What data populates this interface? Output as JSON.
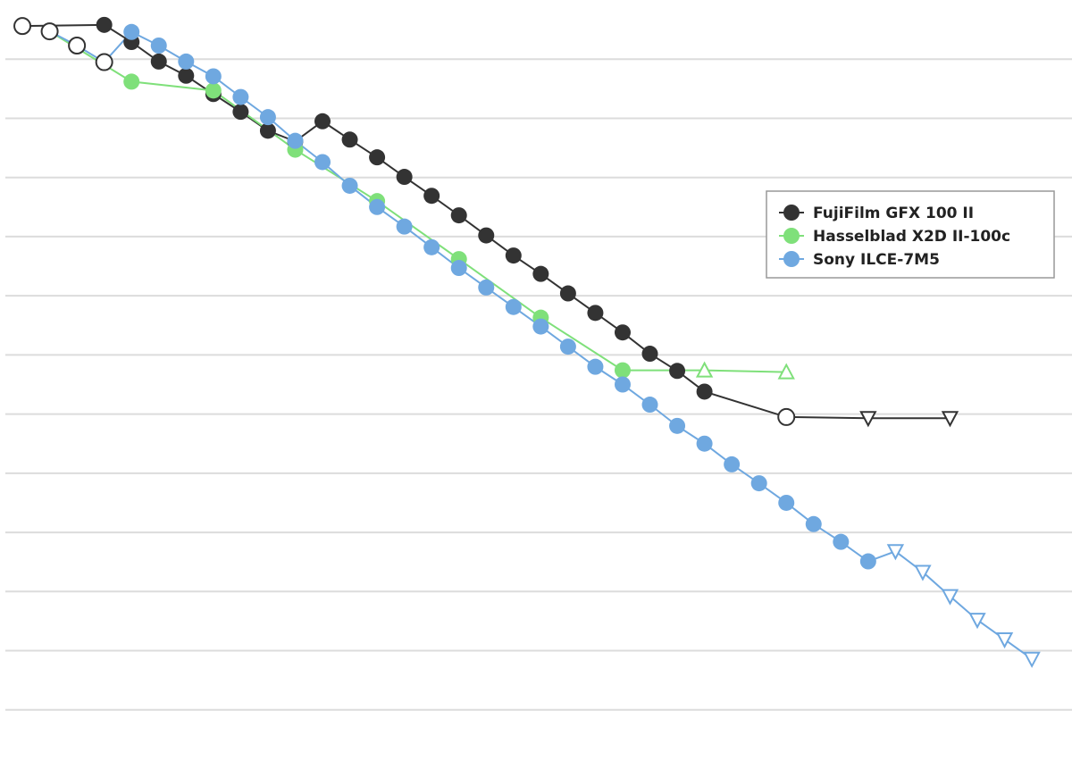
{
  "chart_data": {
    "type": "line",
    "xlim": [
      -0.82,
      38.47
    ],
    "ylim": [
      -1,
      12
    ],
    "yticks": [
      0,
      1,
      2,
      3,
      4,
      5,
      6,
      7,
      8,
      9,
      10,
      11
    ],
    "grid": true,
    "legend": "upper right",
    "series": [
      {
        "name": "FujiFilm GFX 100 II",
        "color": "#333333",
        "x": [
          0,
          3,
          4,
          5,
          6,
          7,
          8,
          9,
          10,
          11,
          12,
          13,
          14,
          15,
          16,
          17,
          18,
          19,
          20,
          21,
          22,
          23,
          24,
          25,
          28,
          31,
          34
        ],
        "values": [
          11.56,
          11.58,
          11.29,
          10.96,
          10.72,
          10.41,
          10.11,
          9.79,
          9.61,
          9.95,
          9.64,
          9.34,
          9.01,
          8.69,
          8.36,
          8.02,
          7.68,
          7.37,
          7.04,
          6.71,
          6.38,
          6.02,
          5.73,
          5.38,
          4.95,
          4.93,
          4.93
        ],
        "markers": [
          "open",
          "filled",
          "filled",
          "filled",
          "filled",
          "filled",
          "filled",
          "filled",
          "filled",
          "filled",
          "filled",
          "filled",
          "filled",
          "filled",
          "filled",
          "filled",
          "filled",
          "filled",
          "filled",
          "filled",
          "filled",
          "filled",
          "filled",
          "filled",
          "open",
          "down",
          "down"
        ]
      },
      {
        "name": "Hasselblad X2D II-100c",
        "color": "#7fe07a",
        "x": [
          1,
          4,
          7,
          10,
          13,
          16,
          19,
          22,
          25,
          28
        ],
        "values": [
          11.47,
          10.62,
          10.47,
          9.47,
          8.6,
          7.62,
          6.63,
          5.74,
          5.74,
          5.71
        ],
        "markers": [
          "filled",
          "filled",
          "filled",
          "filled",
          "filled",
          "filled",
          "filled",
          "filled",
          "up",
          "up"
        ]
      },
      {
        "name": "Sony ILCE-7M5",
        "color": "#6fa8e0",
        "x": [
          1,
          2,
          3,
          4,
          5,
          6,
          7,
          8,
          9,
          10,
          11,
          12,
          13,
          14,
          15,
          16,
          17,
          18,
          19,
          20,
          21,
          22,
          23,
          24,
          25,
          26,
          27,
          28,
          29,
          30,
          31,
          32,
          33,
          34,
          35,
          36,
          37
        ],
        "values": [
          11.47,
          11.23,
          10.95,
          11.46,
          11.23,
          10.96,
          10.71,
          10.36,
          10.02,
          9.62,
          9.26,
          8.86,
          8.5,
          8.17,
          7.82,
          7.47,
          7.14,
          6.81,
          6.48,
          6.14,
          5.8,
          5.5,
          5.16,
          4.8,
          4.5,
          4.15,
          3.83,
          3.5,
          3.14,
          2.84,
          2.51,
          2.68,
          2.33,
          1.92,
          1.52,
          1.19,
          0.86
        ],
        "markers": [
          "open",
          "open",
          "open",
          "filled",
          "filled",
          "filled",
          "filled",
          "filled",
          "filled",
          "filled",
          "filled",
          "filled",
          "filled",
          "filled",
          "filled",
          "filled",
          "filled",
          "filled",
          "filled",
          "filled",
          "filled",
          "filled",
          "filled",
          "filled",
          "filled",
          "filled",
          "filled",
          "filled",
          "filled",
          "filled",
          "filled",
          "down",
          "down",
          "down",
          "down",
          "down",
          "down"
        ]
      }
    ]
  }
}
